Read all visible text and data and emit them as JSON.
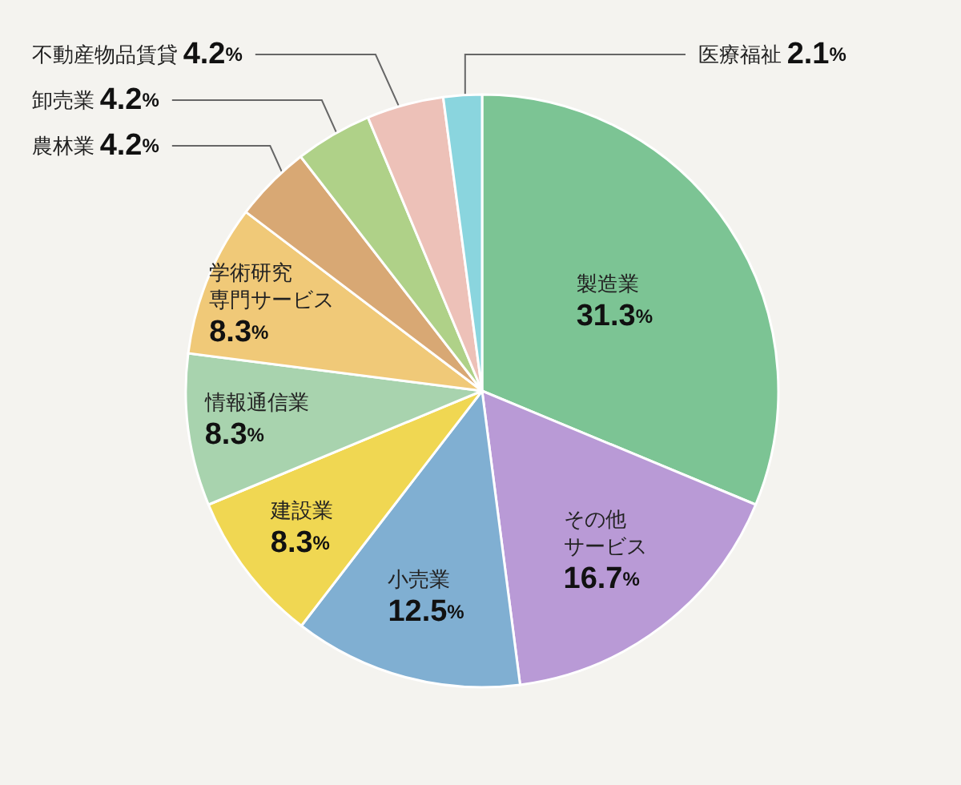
{
  "chart_data": {
    "type": "pie",
    "categories": [
      "製造業",
      "その他サービス",
      "小売業",
      "建設業",
      "情報通信業",
      "学術研究専門サービス",
      "農林業",
      "卸売業",
      "不動産物品賃貸",
      "医療福祉"
    ],
    "values": [
      31.3,
      16.7,
      12.5,
      8.3,
      8.3,
      8.3,
      4.2,
      4.2,
      4.2,
      2.1
    ],
    "value_labels": [
      "31.3%",
      "16.7%",
      "12.5%",
      "8.3%",
      "8.3%",
      "8.3%",
      "4.2%",
      "4.2%",
      "4.2%",
      "2.1%"
    ],
    "colors": [
      "#7cc494",
      "#b99ad6",
      "#80afd2",
      "#f0d752",
      "#a8d3ae",
      "#f0c978",
      "#d8a874",
      "#afd188",
      "#edc1b8",
      "#8ad5de"
    ]
  }
}
